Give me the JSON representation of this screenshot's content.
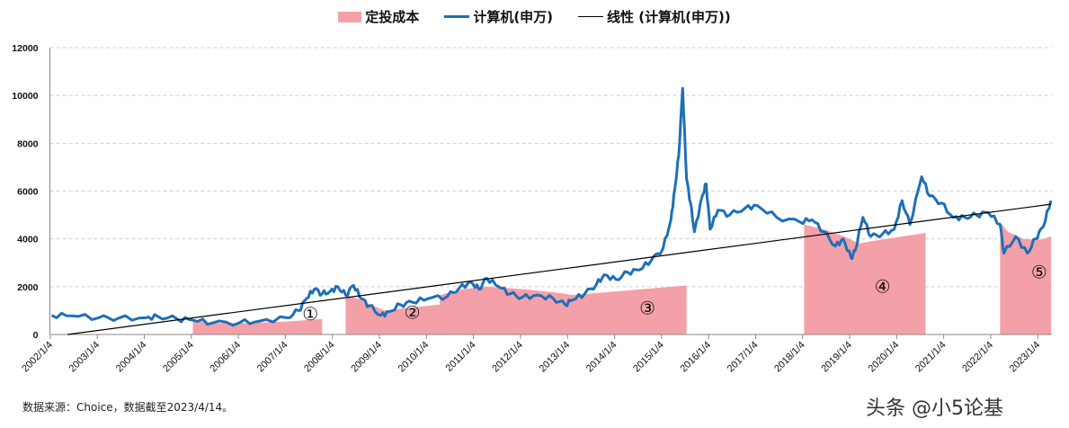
{
  "legend": {
    "cost": "定投成本",
    "index": "计算机(申万)",
    "trend": "线性 (计算机(申万))"
  },
  "colors": {
    "cost": "#F4A0A8",
    "index": "#1E6FB7",
    "trend": "#000000",
    "grid": "#D0D0D0"
  },
  "footer": {
    "source": "数据来源：Choice，数据截至2023/4/14。",
    "watermark": "头条 @小5论基"
  },
  "chart_data": {
    "type": "line",
    "title": "",
    "xlabel": "",
    "ylabel": "",
    "ylim": [
      0,
      12000
    ],
    "yticks": [
      "0",
      "2000",
      "4000",
      "6000",
      "8000",
      "10000",
      "12000"
    ],
    "xticks": [
      "2002/1/4",
      "2003/1/4",
      "2004/1/4",
      "2005/1/4",
      "2006/1/4",
      "2007/1/4",
      "2008/1/4",
      "2009/1/4",
      "2010/1/4",
      "2011/1/4",
      "2012/1/4",
      "2013/1/4",
      "2014/1/4",
      "2015/1/4",
      "2016/1/4",
      "2017/1/4",
      "2018/1/4",
      "2019/1/4",
      "2020/1/4",
      "2021/1/4",
      "2022/1/4",
      "2023/1/4"
    ],
    "grid": "horizontal dashed",
    "legend_position": "top",
    "series": [
      {
        "name": "计算机(申万)",
        "type": "line",
        "points": [
          [
            "2002-01",
            800
          ],
          [
            "2002-06",
            780
          ],
          [
            "2003-01",
            700
          ],
          [
            "2003-06",
            680
          ],
          [
            "2004-01",
            700
          ],
          [
            "2004-04",
            760
          ],
          [
            "2004-09",
            650
          ],
          [
            "2005-01",
            600
          ],
          [
            "2005-06",
            480
          ],
          [
            "2006-01",
            500
          ],
          [
            "2006-06",
            560
          ],
          [
            "2007-01",
            700
          ],
          [
            "2007-04",
            1000
          ],
          [
            "2007-06",
            1500
          ],
          [
            "2007-08",
            1900
          ],
          [
            "2007-10",
            1700
          ],
          [
            "2007-12",
            1800
          ],
          [
            "2008-02",
            2000
          ],
          [
            "2008-04",
            1650
          ],
          [
            "2008-06",
            2050
          ],
          [
            "2008-08",
            1500
          ],
          [
            "2008-10",
            1200
          ],
          [
            "2009-01",
            800
          ],
          [
            "2009-03",
            950
          ],
          [
            "2009-06",
            1250
          ],
          [
            "2009-09",
            1350
          ],
          [
            "2010-01",
            1500
          ],
          [
            "2010-06",
            1600
          ],
          [
            "2010-09",
            1950
          ],
          [
            "2010-12",
            2200
          ],
          [
            "2011-02",
            1900
          ],
          [
            "2011-04",
            2350
          ],
          [
            "2011-07",
            2000
          ],
          [
            "2011-10",
            1700
          ],
          [
            "2012-01",
            1550
          ],
          [
            "2012-05",
            1650
          ],
          [
            "2012-09",
            1500
          ],
          [
            "2012-12",
            1250
          ],
          [
            "2013-02",
            1450
          ],
          [
            "2013-05",
            1700
          ],
          [
            "2013-08",
            2100
          ],
          [
            "2013-10",
            2500
          ],
          [
            "2014-01",
            2300
          ],
          [
            "2014-04",
            2600
          ],
          [
            "2014-07",
            2700
          ],
          [
            "2014-10",
            3100
          ],
          [
            "2015-01",
            3600
          ],
          [
            "2015-03",
            4800
          ],
          [
            "2015-04",
            6100
          ],
          [
            "2015-05",
            7500
          ],
          [
            "2015-06",
            10300
          ],
          [
            "2015-07",
            6500
          ],
          [
            "2015-08",
            5500
          ],
          [
            "2015-09",
            4300
          ],
          [
            "2015-11",
            5800
          ],
          [
            "2015-12",
            6300
          ],
          [
            "2016-01",
            4400
          ],
          [
            "2016-03",
            5200
          ],
          [
            "2016-06",
            5000
          ],
          [
            "2016-10",
            5300
          ],
          [
            "2017-01",
            5400
          ],
          [
            "2017-06",
            4900
          ],
          [
            "2017-12",
            4700
          ],
          [
            "2018-03",
            4800
          ],
          [
            "2018-06",
            4300
          ],
          [
            "2018-09",
            3700
          ],
          [
            "2018-11",
            4000
          ],
          [
            "2019-01",
            3200
          ],
          [
            "2019-02",
            3500
          ],
          [
            "2019-04",
            4900
          ],
          [
            "2019-06",
            4100
          ],
          [
            "2019-09",
            4200
          ],
          [
            "2019-12",
            4400
          ],
          [
            "2020-02",
            5600
          ],
          [
            "2020-04",
            4600
          ],
          [
            "2020-07",
            6600
          ],
          [
            "2020-09",
            5800
          ],
          [
            "2020-12",
            5500
          ],
          [
            "2021-03",
            4900
          ],
          [
            "2021-06",
            4900
          ],
          [
            "2021-09",
            5000
          ],
          [
            "2021-12",
            5100
          ],
          [
            "2022-03",
            4600
          ],
          [
            "2022-04",
            3400
          ],
          [
            "2022-07",
            4100
          ],
          [
            "2022-10",
            3400
          ],
          [
            "2022-12",
            4000
          ],
          [
            "2023-02",
            4500
          ],
          [
            "2023-04",
            5600
          ]
        ]
      },
      {
        "name": "定投成本",
        "type": "area",
        "segments": [
          [
            [
              "2005-01",
              600
            ],
            [
              "2005-06",
              480
            ],
            [
              "2006-01",
              470
            ],
            [
              "2007-01",
              540
            ],
            [
              "2007-10",
              650
            ]
          ],
          [
            [
              "2008-04",
              1650
            ],
            [
              "2008-08",
              1450
            ],
            [
              "2008-11",
              1200
            ],
            [
              "2009-02",
              1000
            ],
            [
              "2009-07",
              1100
            ],
            [
              "2010-04",
              1250
            ]
          ],
          [
            [
              "2010-04",
              1650
            ],
            [
              "2010-10",
              1900
            ],
            [
              "2011-04",
              2000
            ],
            [
              "2012-01",
              1900
            ],
            [
              "2012-10",
              1750
            ],
            [
              "2013-02",
              1650
            ],
            [
              "2014-01",
              1800
            ],
            [
              "2015-07",
              2050
            ]
          ],
          [
            [
              "2018-01",
              4600
            ],
            [
              "2018-06",
              4400
            ],
            [
              "2018-12",
              4050
            ],
            [
              "2019-03",
              3800
            ],
            [
              "2019-06",
              3900
            ],
            [
              "2020-08",
              4250
            ]
          ],
          [
            [
              "2022-03",
              4700
            ],
            [
              "2022-05",
              4300
            ],
            [
              "2022-09",
              4000
            ],
            [
              "2023-01",
              3950
            ],
            [
              "2023-04",
              4100
            ]
          ]
        ]
      },
      {
        "name": "线性 (计算机(申万))",
        "type": "trendline",
        "points": [
          [
            "2002-05",
            0
          ],
          [
            "2023-04",
            5450
          ]
        ]
      }
    ],
    "annotations": [
      {
        "text": "①",
        "at": [
          "2007-07",
          600
        ]
      },
      {
        "text": "②",
        "at": [
          "2009-09",
          650
        ]
      },
      {
        "text": "③",
        "at": [
          "2014-09",
          850
        ]
      },
      {
        "text": "④",
        "at": [
          "2019-09",
          1750
        ]
      },
      {
        "text": "⑤",
        "at": [
          "2023-01",
          2350
        ]
      }
    ]
  }
}
